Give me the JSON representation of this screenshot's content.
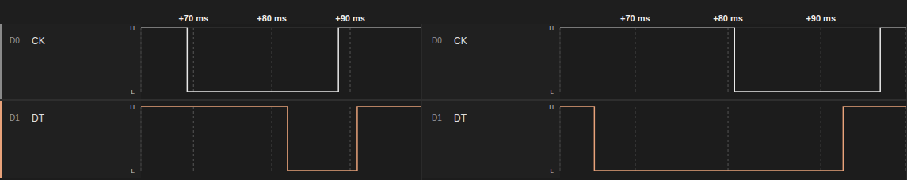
{
  "chart_data": [
    {
      "type": "line",
      "line_style": "step",
      "grid": true,
      "xlim": [
        63.3,
        99.1
      ],
      "xticks": [
        {
          "value": 70,
          "label": "+70 ms"
        },
        {
          "value": 80,
          "label": "+80 ms"
        },
        {
          "value": 90,
          "label": "+90 ms"
        }
      ],
      "ylim": [
        0,
        1
      ],
      "yticks": [
        {
          "value": 0,
          "label": "L"
        },
        {
          "value": 1,
          "label": "H"
        }
      ],
      "series": [
        {
          "channel": "D0",
          "name": "CK",
          "color": "#e8e8e8",
          "x": [
            63.3,
            69.2,
            88.5,
            99.1
          ],
          "values": [
            1,
            0,
            1,
            1
          ]
        },
        {
          "channel": "D1",
          "name": "DT",
          "color": "#e8a27a",
          "x": [
            63.3,
            82.0,
            90.9,
            99.1
          ],
          "values": [
            1,
            0,
            1,
            1
          ]
        }
      ]
    },
    {
      "type": "line",
      "line_style": "step",
      "grid": true,
      "xlim": [
        61.9,
        99.2
      ],
      "xticks": [
        {
          "value": 70,
          "label": "+70 ms"
        },
        {
          "value": 80,
          "label": "+80 ms"
        },
        {
          "value": 90,
          "label": "+90 ms"
        }
      ],
      "ylim": [
        0,
        1
      ],
      "yticks": [
        {
          "value": 0,
          "label": "L"
        },
        {
          "value": 1,
          "label": "H"
        }
      ],
      "series": [
        {
          "channel": "D0",
          "name": "CK",
          "color": "#e8e8e8",
          "x": [
            61.9,
            80.7,
            96.4,
            99.2
          ],
          "values": [
            1,
            0,
            1,
            1
          ]
        },
        {
          "channel": "D1",
          "name": "DT",
          "color": "#e8a27a",
          "x": [
            61.9,
            65.6,
            92.4,
            99.2
          ],
          "values": [
            1,
            0,
            1,
            1
          ]
        }
      ]
    }
  ]
}
